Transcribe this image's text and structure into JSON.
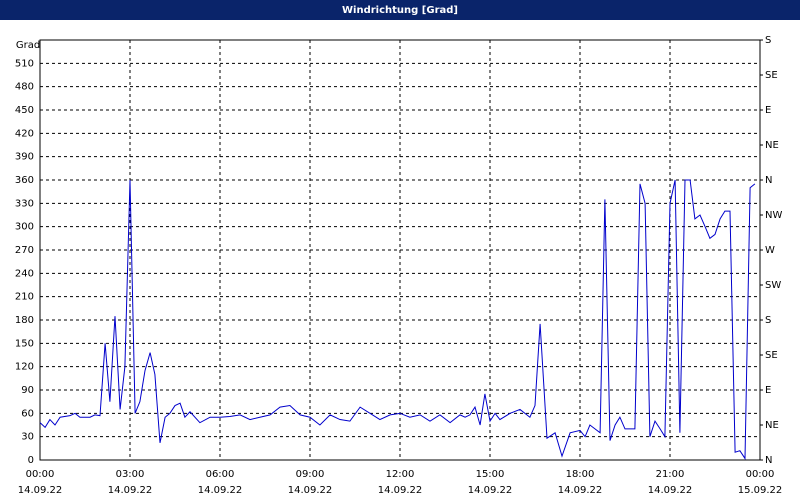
{
  "chart_data": {
    "type": "line",
    "title": "Windrichtung [Grad]",
    "ylabel": "Grad",
    "x": [
      0,
      0.17,
      0.33,
      0.5,
      0.67,
      1.0,
      1.17,
      1.33,
      1.67,
      1.83,
      2.0,
      2.17,
      2.33,
      2.5,
      2.67,
      2.83,
      3.0,
      3.17,
      3.33,
      3.5,
      3.67,
      3.83,
      4.0,
      4.17,
      4.33,
      4.5,
      4.67,
      4.83,
      5.0,
      5.33,
      5.67,
      6.0,
      6.33,
      6.67,
      7.0,
      7.33,
      7.67,
      8.0,
      8.33,
      8.67,
      9.0,
      9.33,
      9.67,
      10.0,
      10.33,
      10.67,
      11.0,
      11.33,
      11.67,
      12.0,
      12.33,
      12.67,
      13.0,
      13.33,
      13.67,
      14.0,
      14.17,
      14.33,
      14.5,
      14.67,
      14.83,
      15.0,
      15.17,
      15.33,
      15.67,
      16.0,
      16.33,
      16.5,
      16.67,
      16.9,
      17.17,
      17.4,
      17.67,
      18.0,
      18.17,
      18.33,
      18.67,
      18.83,
      19.0,
      19.17,
      19.33,
      19.5,
      19.83,
      20.0,
      20.17,
      20.33,
      20.5,
      20.67,
      20.83,
      21.0,
      21.17,
      21.33,
      21.5,
      21.67,
      21.83,
      22.0,
      22.17,
      22.33,
      22.5,
      22.67,
      22.83,
      23.0,
      23.17,
      23.33,
      23.5,
      23.67,
      23.83
    ],
    "series": [
      {
        "name": "Windrichtung",
        "color": "#0000cc",
        "values": [
          48,
          42,
          52,
          45,
          55,
          57,
          60,
          55,
          55,
          58,
          57,
          150,
          75,
          185,
          65,
          120,
          360,
          60,
          75,
          115,
          138,
          110,
          22,
          55,
          60,
          70,
          73,
          55,
          62,
          48,
          55,
          55,
          56,
          58,
          52,
          55,
          58,
          68,
          70,
          58,
          55,
          45,
          58,
          52,
          50,
          68,
          60,
          52,
          58,
          60,
          55,
          58,
          50,
          58,
          48,
          58,
          55,
          58,
          68,
          45,
          85,
          50,
          60,
          52,
          60,
          65,
          55,
          70,
          175,
          28,
          35,
          5,
          35,
          38,
          30,
          45,
          35,
          335,
          25,
          45,
          55,
          40,
          40,
          355,
          330,
          30,
          50,
          40,
          30,
          330,
          360,
          35,
          360,
          360,
          310,
          315,
          300,
          285,
          290,
          310,
          320,
          320,
          10,
          12,
          2,
          350,
          355
        ]
      }
    ],
    "xlim": [
      0,
      24
    ],
    "xticks": [
      {
        "value": 0,
        "label": "00:00"
      },
      {
        "value": 3,
        "label": "03:00"
      },
      {
        "value": 6,
        "label": "06:00"
      },
      {
        "value": 9,
        "label": "09:00"
      },
      {
        "value": 12,
        "label": "12:00"
      },
      {
        "value": 15,
        "label": "15:00"
      },
      {
        "value": 18,
        "label": "18:00"
      },
      {
        "value": 21,
        "label": "21:00"
      },
      {
        "value": 24,
        "label": "00:00"
      }
    ],
    "xtick_dates": [
      "14.09.22",
      "14.09.22",
      "14.09.22",
      "14.09.22",
      "14.09.22",
      "14.09.22",
      "14.09.22",
      "14.09.22",
      "15.09.22"
    ],
    "ylim": [
      0,
      540
    ],
    "yticks": [
      0,
      30,
      60,
      90,
      120,
      150,
      180,
      210,
      240,
      270,
      300,
      330,
      360,
      390,
      420,
      450,
      480,
      510
    ],
    "y2lim": [
      0,
      540
    ],
    "y2ticks": [
      {
        "value": 0,
        "label": "N"
      },
      {
        "value": 45,
        "label": "NE"
      },
      {
        "value": 90,
        "label": "E"
      },
      {
        "value": 135,
        "label": "SE"
      },
      {
        "value": 180,
        "label": "S"
      },
      {
        "value": 225,
        "label": "SW"
      },
      {
        "value": 270,
        "label": "W"
      },
      {
        "value": 315,
        "label": "NW"
      },
      {
        "value": 360,
        "label": "N"
      },
      {
        "value": 405,
        "label": "NE"
      },
      {
        "value": 450,
        "label": "E"
      },
      {
        "value": 495,
        "label": "SE"
      },
      {
        "value": 540,
        "label": "S"
      }
    ],
    "grid": true
  }
}
